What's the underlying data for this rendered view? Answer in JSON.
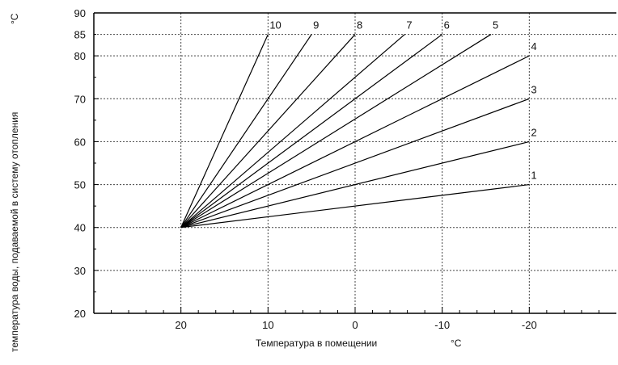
{
  "chart_data": {
    "type": "line",
    "xlabel": "Температура в помещении",
    "xunit": "°C",
    "ylabel": "температура воды, подаваемой в систему отопления",
    "yunit": "°C",
    "xlim": [
      30,
      -30
    ],
    "ylim": [
      20,
      90
    ],
    "x_reversed": true,
    "grid": true,
    "x_ticks": [
      20,
      10,
      0,
      -10,
      -20
    ],
    "x_tick_labels": [
      "20",
      "10",
      "0",
      "-10",
      "-20"
    ],
    "y_ticks": [
      20,
      30,
      40,
      50,
      60,
      70,
      80,
      85,
      90
    ],
    "y_tick_labels": [
      "20",
      "30",
      "40",
      "50",
      "60",
      "70",
      "80",
      "85",
      "90"
    ],
    "x_grid": [
      20,
      10,
      0,
      -10,
      -20
    ],
    "y_grid": [
      30,
      40,
      50,
      60,
      70,
      80,
      85
    ],
    "series": [
      {
        "name": "1",
        "points": [
          [
            20,
            40
          ],
          [
            -20,
            50
          ]
        ]
      },
      {
        "name": "2",
        "points": [
          [
            20,
            40
          ],
          [
            -20,
            60
          ]
        ]
      },
      {
        "name": "3",
        "points": [
          [
            20,
            40
          ],
          [
            -20,
            70
          ]
        ]
      },
      {
        "name": "4",
        "points": [
          [
            20,
            40
          ],
          [
            -20,
            80
          ]
        ]
      },
      {
        "name": "5",
        "points": [
          [
            20,
            40
          ],
          [
            -15.6,
            85
          ]
        ]
      },
      {
        "name": "6",
        "points": [
          [
            20,
            40
          ],
          [
            -10,
            85
          ]
        ]
      },
      {
        "name": "7",
        "points": [
          [
            20,
            40
          ],
          [
            -5.7,
            85
          ]
        ]
      },
      {
        "name": "8",
        "points": [
          [
            20,
            40
          ],
          [
            0,
            85
          ]
        ]
      },
      {
        "name": "9",
        "points": [
          [
            20,
            40
          ],
          [
            5,
            85
          ]
        ]
      },
      {
        "name": "10",
        "points": [
          [
            20,
            40
          ],
          [
            10,
            85
          ]
        ]
      }
    ]
  }
}
